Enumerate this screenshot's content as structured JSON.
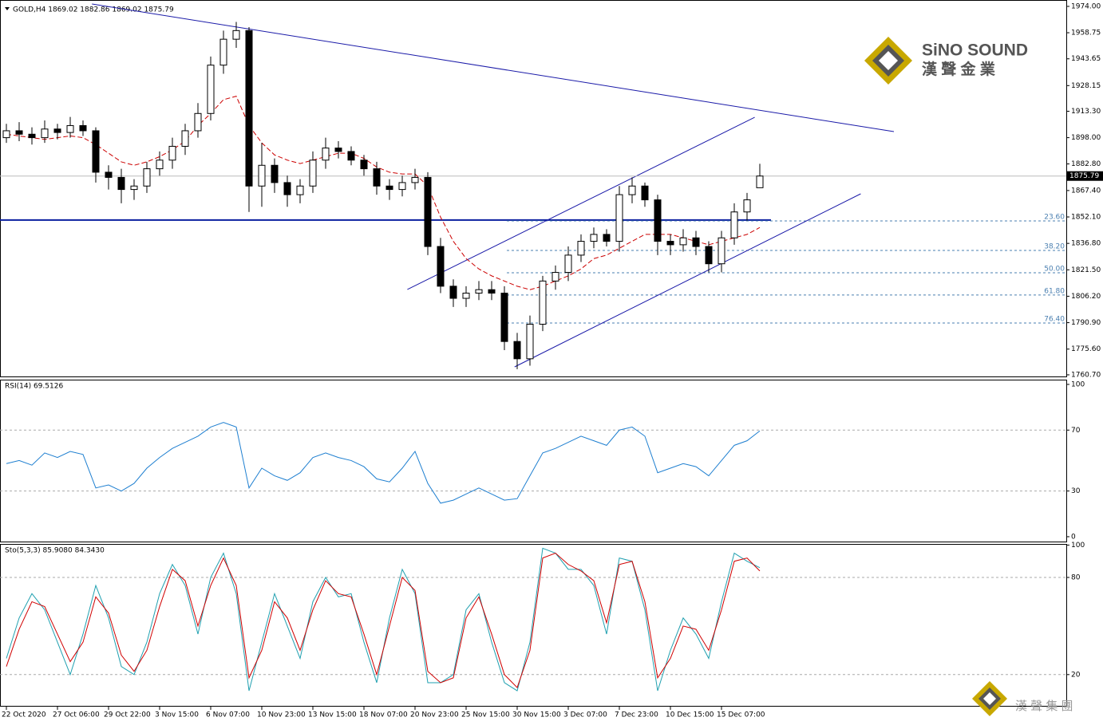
{
  "chart_data": {
    "type": "candlestick",
    "header": "GOLD,H4 1869.02 1882.86 1869.02 1875.79",
    "brand": {
      "name": "SiNO SOUND",
      "subtitle": "漢 聲 金 業",
      "footer": "漢 聲 集 團"
    },
    "categories": [
      "22 Oct 2020",
      null,
      null,
      null,
      "27 Oct 06:00",
      null,
      null,
      null,
      "29 Oct 22:00",
      null,
      null,
      null,
      "3 Nov 15:00",
      null,
      null,
      null,
      "6 Nov 07:00",
      null,
      null,
      null,
      "10 Nov 23:00",
      null,
      null,
      null,
      "13 Nov 15:00",
      null,
      null,
      null,
      "18 Nov 07:00",
      null,
      null,
      null,
      "20 Nov 23:00",
      null,
      null,
      null,
      "25 Nov 15:00",
      null,
      null,
      null,
      "30 Nov 15:00",
      null,
      null,
      null,
      "3 Dec 07:00",
      null,
      null,
      null,
      "7 Dec 23:00",
      null,
      null,
      null,
      "10 Dec 15:00",
      null,
      null,
      null,
      "15 Dec 07:00",
      null,
      null,
      null
    ],
    "open": [
      1898,
      1902,
      1900,
      1898,
      1903,
      1901,
      1905,
      1902,
      1878,
      1875,
      1868,
      1870,
      1880,
      1885,
      1893,
      1902,
      1912,
      1940,
      1955,
      1960,
      1870,
      1882,
      1872,
      1865,
      1870,
      1885,
      1892,
      1890,
      1885,
      1880,
      1870,
      1868,
      1872,
      1875,
      1835,
      1812,
      1805,
      1808,
      1810,
      1808,
      1780,
      1770,
      1790,
      1815,
      1820,
      1830,
      1838,
      1842,
      1838,
      1865,
      1870,
      1862,
      1838,
      1836,
      1840,
      1835,
      1825,
      1840,
      1855,
      1869.02
    ],
    "high": [
      1906,
      1907,
      1904,
      1908,
      1906,
      1910,
      1908,
      1904,
      1882,
      1880,
      1874,
      1884,
      1890,
      1898,
      1906,
      1918,
      1945,
      1960,
      1965,
      1962,
      1895,
      1886,
      1876,
      1874,
      1890,
      1898,
      1896,
      1893,
      1888,
      1884,
      1874,
      1876,
      1880,
      1878,
      1840,
      1816,
      1812,
      1815,
      1815,
      1812,
      1785,
      1795,
      1818,
      1824,
      1835,
      1842,
      1846,
      1845,
      1870,
      1875,
      1872,
      1865,
      1842,
      1845,
      1844,
      1838,
      1844,
      1860,
      1866,
      1882.86
    ],
    "low": [
      1895,
      1896,
      1894,
      1895,
      1897,
      1898,
      1899,
      1872,
      1868,
      1860,
      1862,
      1866,
      1876,
      1880,
      1888,
      1898,
      1908,
      1935,
      1950,
      1855,
      1858,
      1866,
      1858,
      1860,
      1866,
      1880,
      1886,
      1882,
      1876,
      1865,
      1862,
      1864,
      1868,
      1830,
      1808,
      1800,
      1800,
      1804,
      1804,
      1775,
      1764,
      1766,
      1786,
      1810,
      1815,
      1826,
      1834,
      1835,
      1832,
      1860,
      1858,
      1830,
      1830,
      1832,
      1830,
      1820,
      1820,
      1836,
      1850,
      1869.02
    ],
    "close": [
      1902,
      1900,
      1898,
      1903,
      1901,
      1905,
      1902,
      1878,
      1875,
      1868,
      1870,
      1880,
      1885,
      1893,
      1902,
      1912,
      1940,
      1955,
      1960,
      1870,
      1882,
      1872,
      1865,
      1870,
      1885,
      1892,
      1890,
      1885,
      1880,
      1870,
      1868,
      1872,
      1875,
      1835,
      1812,
      1805,
      1808,
      1810,
      1808,
      1780,
      1770,
      1790,
      1815,
      1820,
      1830,
      1838,
      1842,
      1838,
      1865,
      1870,
      1862,
      1838,
      1836,
      1840,
      1835,
      1825,
      1840,
      1855,
      1862,
      1875.79
    ],
    "ma": {
      "color": "#cc0000",
      "values": [
        1900,
        1899,
        1898,
        1897,
        1898,
        1899,
        1898,
        1894,
        1889,
        1884,
        1882,
        1884,
        1887,
        1891,
        1896,
        1905,
        1912,
        1920,
        1922,
        1905,
        1895,
        1888,
        1885,
        1883,
        1885,
        1887,
        1889,
        1889,
        1886,
        1881,
        1878,
        1877,
        1877,
        1870,
        1852,
        1838,
        1828,
        1822,
        1818,
        1815,
        1812,
        1810,
        1812,
        1815,
        1818,
        1822,
        1828,
        1830,
        1834,
        1838,
        1842,
        1842,
        1842,
        1840,
        1838,
        1836,
        1838,
        1840,
        1842,
        1846
      ]
    },
    "last_price": 1875.79,
    "ylim": [
      1759.3,
      1977.7
    ],
    "yticks": [
      {
        "value": 1974,
        "label": "1974.00"
      },
      1958.75,
      1943.65,
      1928.15,
      {
        "value": 1913.3,
        "label": "1913.30"
      },
      {
        "value": 1898,
        "label": "1898.00"
      },
      {
        "value": 1882.8,
        "label": "1882.80"
      },
      {
        "value": 1867.4,
        "label": "1867.40"
      },
      {
        "value": 1852.1,
        "label": "1852.10"
      },
      {
        "value": 1836.8,
        "label": "1836.80"
      },
      {
        "value": 1821.5,
        "label": "1821.50"
      },
      {
        "value": 1806.2,
        "label": "1806.20"
      },
      {
        "value": 1790.9,
        "label": "1790.90"
      },
      {
        "value": 1775.6,
        "label": "1775.60"
      },
      {
        "value": 1760.7,
        "label": "1760.70"
      }
    ],
    "support_line": 1850.3,
    "fib_levels": {
      "labels": [
        {
          "value": 23.6,
          "label": "23.60"
        },
        {
          "value": 38.2,
          "label": "38.20"
        },
        {
          "value": 50,
          "label": "50.00"
        },
        {
          "value": 61.8,
          "label": "61.80"
        },
        {
          "value": 76.4,
          "label": "76.40"
        }
      ],
      "prices": [
        1849.8,
        1832.7,
        1819.8,
        1806.9,
        1790.7
      ]
    },
    "trendlines": [
      {
        "x": [
          6.7,
          69.5
        ],
        "y": [
          1975.4,
          1901.5
        ]
      },
      {
        "x": [
          31.4,
          58.6
        ],
        "y": [
          1810.1,
          1909.8
        ]
      },
      {
        "x": [
          39.8,
          66.9
        ],
        "y": [
          1765.3,
          1865.5
        ]
      }
    ],
    "rsi": {
      "label": "RSI(14) 69.5126",
      "color": "#1e7fd0",
      "ylim": [
        -3.7,
        102.6
      ],
      "yticks": [
        100,
        70,
        30,
        0
      ],
      "levels": [
        70,
        30
      ],
      "values": [
        48,
        50,
        47,
        55,
        52,
        56,
        54,
        32,
        34,
        30,
        35,
        45,
        52,
        58,
        62,
        66,
        72,
        75,
        72,
        32,
        45,
        40,
        37,
        42,
        52,
        55,
        52,
        50,
        46,
        38,
        36,
        45,
        56,
        35,
        22,
        24,
        28,
        32,
        28,
        24,
        25,
        40,
        55,
        58,
        62,
        66,
        63,
        60,
        70,
        72,
        66,
        42,
        45,
        48,
        46,
        40,
        50,
        60,
        63,
        69.5
      ]
    },
    "stochastic": {
      "label": "Sto(5,3,3) 85.9080 84.3430",
      "ylim": [
        0.2,
        100.2
      ],
      "yticks": [
        100,
        80,
        20
      ],
      "levels": [
        80,
        20
      ],
      "series": [
        {
          "color": "#20a0b0",
          "values": [
            30,
            55,
            70,
            60,
            40,
            20,
            45,
            75,
            55,
            25,
            20,
            40,
            70,
            88,
            75,
            45,
            80,
            95,
            70,
            10,
            40,
            70,
            50,
            30,
            65,
            80,
            68,
            70,
            40,
            15,
            55,
            85,
            70,
            15,
            15,
            20,
            60,
            70,
            40,
            15,
            10,
            40,
            98,
            95,
            85,
            85,
            75,
            45,
            92,
            90,
            60,
            10,
            35,
            55,
            45,
            30,
            65,
            95,
            90,
            86
          ]
        },
        {
          "color": "#d00000",
          "values": [
            25,
            48,
            65,
            62,
            45,
            28,
            40,
            68,
            58,
            32,
            22,
            35,
            62,
            85,
            78,
            50,
            75,
            92,
            75,
            18,
            35,
            65,
            55,
            35,
            60,
            78,
            70,
            68,
            45,
            20,
            50,
            80,
            72,
            22,
            15,
            18,
            55,
            68,
            45,
            20,
            12,
            35,
            92,
            95,
            88,
            84,
            78,
            52,
            88,
            90,
            65,
            18,
            30,
            50,
            48,
            35,
            60,
            90,
            92,
            84
          ]
        }
      ]
    }
  }
}
